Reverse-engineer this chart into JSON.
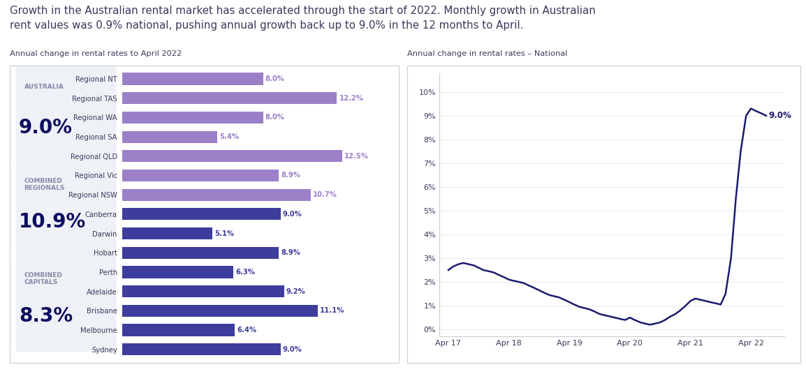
{
  "title": "Growth in the Australian rental market has accelerated through the start of 2022. Monthly growth in Australian\nrent values was 0.9% national, pushing annual growth back up to 9.0% in the 12 months to April.",
  "left_subtitle": "Annual change in rental rates to April 2022",
  "right_subtitle": "Annual change in rental rates – National",
  "stat_boxes": [
    {
      "label": "AUSTRALIA",
      "value": "9.0%"
    },
    {
      "label": "COMBINED\nREGIONALS",
      "value": "10.9%"
    },
    {
      "label": "COMBINED\nCAPITALS",
      "value": "8.3%"
    }
  ],
  "bar_categories": [
    "Regional NT",
    "Regional TAS",
    "Regional WA",
    "Regional SA",
    "Regional QLD",
    "Regional Vic",
    "Regional NSW",
    "Canberra",
    "Darwin",
    "Hobart",
    "Perth",
    "Adelaide",
    "Brisbane",
    "Melbourne",
    "Sydney"
  ],
  "bar_values": [
    8.0,
    12.2,
    8.0,
    5.4,
    12.5,
    8.9,
    10.7,
    9.0,
    5.1,
    8.9,
    6.3,
    9.2,
    11.1,
    6.4,
    9.0
  ],
  "bar_colors": [
    "#9b80c8",
    "#9b80c8",
    "#9b80c8",
    "#9b80c8",
    "#9b80c8",
    "#9b80c8",
    "#9b80c8",
    "#3d3d9e",
    "#3d3d9e",
    "#3d3d9e",
    "#3d3d9e",
    "#3d3d9e",
    "#3d3d9e",
    "#3d3d9e",
    "#3d3d9e"
  ],
  "bar_label_colors": [
    "#9b80c8",
    "#9b80c8",
    "#9b80c8",
    "#9b80c8",
    "#9b80c8",
    "#9b80c8",
    "#9b80c8",
    "#3d3d9e",
    "#3d3d9e",
    "#3d3d9e",
    "#3d3d9e",
    "#3d3d9e",
    "#3d3d9e",
    "#3d3d9e",
    "#3d3d9e"
  ],
  "line_x": [
    2017.0,
    2017.08,
    2017.17,
    2017.25,
    2017.33,
    2017.42,
    2017.5,
    2017.58,
    2017.67,
    2017.75,
    2017.83,
    2017.92,
    2018.0,
    2018.08,
    2018.17,
    2018.25,
    2018.33,
    2018.42,
    2018.5,
    2018.58,
    2018.67,
    2018.75,
    2018.83,
    2018.92,
    2019.0,
    2019.08,
    2019.17,
    2019.25,
    2019.33,
    2019.42,
    2019.5,
    2019.58,
    2019.67,
    2019.75,
    2019.83,
    2019.92,
    2020.0,
    2020.08,
    2020.17,
    2020.25,
    2020.33,
    2020.42,
    2020.5,
    2020.58,
    2020.67,
    2020.75,
    2020.83,
    2020.92,
    2021.0,
    2021.08,
    2021.17,
    2021.25,
    2021.33,
    2021.42,
    2021.5,
    2021.58,
    2021.67,
    2021.75,
    2021.83,
    2021.92,
    2022.0,
    2022.08,
    2022.17,
    2022.25
  ],
  "line_y": [
    2.5,
    2.65,
    2.75,
    2.8,
    2.75,
    2.7,
    2.6,
    2.5,
    2.45,
    2.4,
    2.3,
    2.2,
    2.1,
    2.05,
    2.0,
    1.95,
    1.85,
    1.75,
    1.65,
    1.55,
    1.45,
    1.4,
    1.35,
    1.25,
    1.15,
    1.05,
    0.95,
    0.9,
    0.85,
    0.75,
    0.65,
    0.6,
    0.55,
    0.5,
    0.45,
    0.4,
    0.5,
    0.4,
    0.3,
    0.25,
    0.2,
    0.25,
    0.3,
    0.4,
    0.55,
    0.65,
    0.8,
    1.0,
    1.2,
    1.3,
    1.25,
    1.2,
    1.15,
    1.1,
    1.05,
    1.5,
    3.0,
    5.5,
    7.5,
    9.0,
    9.3,
    9.2,
    9.1,
    9.0
  ],
  "line_color": "#1a1a6e",
  "line_annotation": "9.0%",
  "ytick_vals": [
    0,
    1,
    2,
    3,
    4,
    5,
    6,
    7,
    8,
    9,
    10
  ],
  "ytick_labels": [
    "0%",
    "1%",
    "2%",
    "3%",
    "4%",
    "5%",
    "6%",
    "7%",
    "8%",
    "9%",
    "10%"
  ],
  "xtick_vals": [
    2017,
    2018,
    2019,
    2020,
    2021,
    2022
  ],
  "xtick_labels": [
    "Apr 17",
    "Apr 18",
    "Apr 19",
    "Apr 20",
    "Apr 21",
    "Apr 22"
  ],
  "bg_color": "#ffffff",
  "panel_bg": "#eef1f6",
  "title_color": "#3a3a5c",
  "label_color": "#3a3a5c",
  "stat_label_color": "#8888aa",
  "stat_value_color": "#0d0d5e",
  "border_color": "#cccccc"
}
